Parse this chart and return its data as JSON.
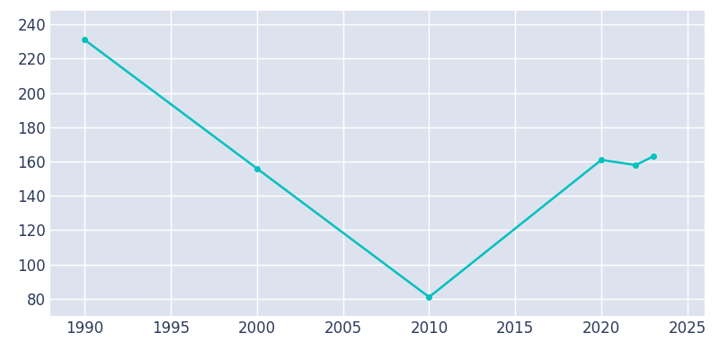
{
  "years": [
    1990,
    2000,
    2010,
    2020,
    2022,
    2023
  ],
  "population": [
    231,
    156,
    81,
    161,
    158,
    163
  ],
  "line_color": "#00C0C0",
  "marker": "o",
  "marker_size": 4,
  "bg_color": "#dde3ee",
  "outer_bg": "#ffffff",
  "grid_color": "#ffffff",
  "xlim": [
    1988,
    2026
  ],
  "ylim": [
    70,
    248
  ],
  "xticks": [
    1990,
    1995,
    2000,
    2005,
    2010,
    2015,
    2020,
    2025
  ],
  "yticks": [
    80,
    100,
    120,
    140,
    160,
    180,
    200,
    220,
    240
  ],
  "tick_color": "#2d3a5c",
  "linewidth": 1.8,
  "tick_labelsize": 12
}
